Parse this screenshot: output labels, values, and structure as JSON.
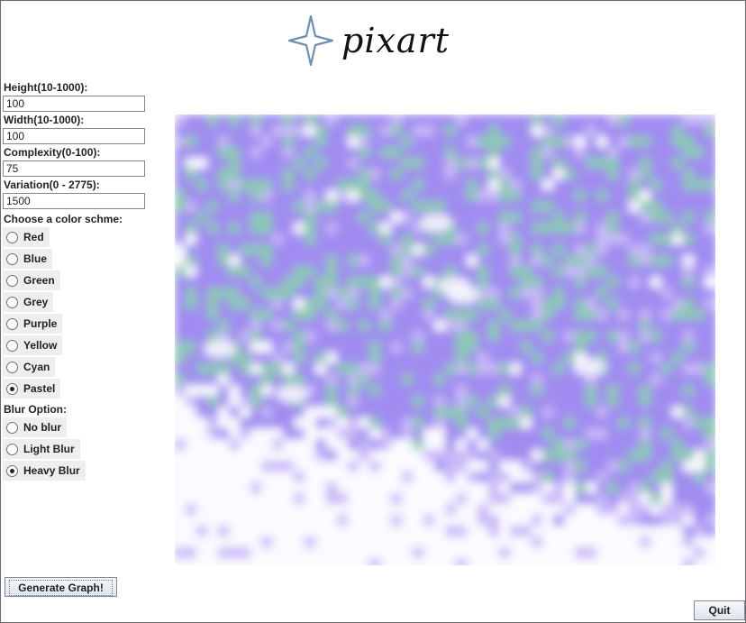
{
  "app": {
    "logo_text": "pixart"
  },
  "fields": [
    {
      "label": "Height(10-1000):",
      "value": "100"
    },
    {
      "label": "Width(10-1000):",
      "value": "100"
    },
    {
      "label": "Complexity(0-100):",
      "value": "75"
    },
    {
      "label": "Variation(0 - 2775):",
      "value": "1500"
    }
  ],
  "color_scheme": {
    "label": "Choose a color schme:",
    "options": [
      {
        "label": "Red",
        "selected": false
      },
      {
        "label": "Blue",
        "selected": false
      },
      {
        "label": "Green",
        "selected": false
      },
      {
        "label": "Grey",
        "selected": false
      },
      {
        "label": "Purple",
        "selected": false
      },
      {
        "label": "Yellow",
        "selected": false
      },
      {
        "label": "Cyan",
        "selected": false
      },
      {
        "label": "Pastel",
        "selected": true
      }
    ]
  },
  "blur": {
    "label": "Blur Option:",
    "options": [
      {
        "label": "No blur",
        "selected": false
      },
      {
        "label": "Light Blur",
        "selected": false
      },
      {
        "label": "Heavy Blur",
        "selected": true
      }
    ]
  },
  "buttons": {
    "generate": "Generate Graph!",
    "quit": "Quit"
  },
  "colors": {
    "purple": "#a08cf0",
    "teal": "#8cc8b4",
    "lilac": "#c8b8f8",
    "white": "#fafaff"
  }
}
